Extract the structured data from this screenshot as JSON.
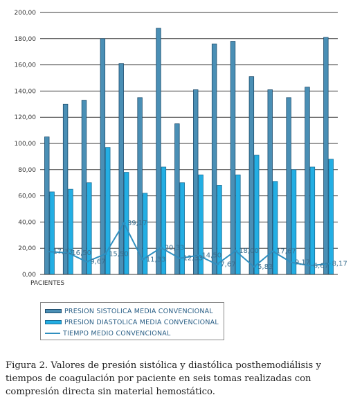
{
  "chart_data": {
    "type": "bar",
    "xlabel": "PACIENTES",
    "ylim": [
      0,
      200
    ],
    "yticks": [
      "0,00",
      "20,00",
      "40,00",
      "60,00",
      "80,00",
      "100,00",
      "120,00",
      "140,00",
      "160,00",
      "180,00",
      "200,00"
    ],
    "grid": true,
    "legend_position": "bottom",
    "series": [
      {
        "name": "PRESION SISTOLICA MEDIA CONVENCIONAL",
        "kind": "bar",
        "color": "#4a8fb5",
        "values": [
          105,
          130,
          133,
          180,
          161,
          135,
          188,
          115,
          141,
          176,
          178,
          151,
          141,
          135,
          143,
          181
        ]
      },
      {
        "name": "PRESION DIASTOLICA MEDIA CONVENCIONAL",
        "kind": "bar",
        "color": "#23aee3",
        "values": [
          63,
          65,
          70,
          97,
          78,
          62,
          82,
          70,
          76,
          68,
          76,
          91,
          71,
          80,
          82,
          88
        ]
      },
      {
        "name": "TIEMPO MEDIO CONVENCIONAL",
        "kind": "line",
        "color": "#2f8fbf",
        "values": [
          17.33,
          16.5,
          9.67,
          15.5,
          39.17,
          11.33,
          20.33,
          12.33,
          14.5,
          7.67,
          18.0,
          5.83,
          17.67,
          9.17,
          6.67,
          8.17
        ],
        "labels": [
          "17,33",
          "16,50",
          "9,67",
          "15,50",
          "39,17",
          "11,33",
          "20,33",
          "12,33",
          "14,50",
          "7,67",
          "18,00",
          "5,83",
          "17,67",
          "9,17",
          "6,67",
          "8,17"
        ]
      }
    ]
  },
  "caption": "Figura 2. Valores de presión sistólica y diastólica posthemodiálisis y tiempos de coagulación por paciente en seis tomas realizadas con compresión directa sin material hemostático."
}
